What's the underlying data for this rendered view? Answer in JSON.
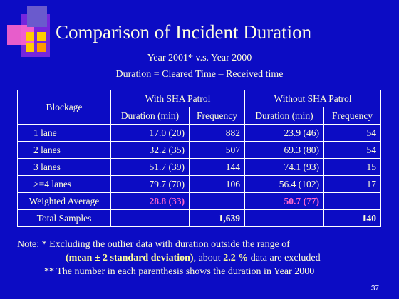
{
  "title": "Comparison of Incident Duration",
  "subtitle": [
    "Year 2001* v.s. Year 2000",
    "Duration = Cleared Time – Received time"
  ],
  "table": {
    "row_header": "Blockage",
    "group_headers": [
      "With SHA Patrol",
      "Without SHA Patrol"
    ],
    "column_headers": [
      "Duration (min)",
      "Frequency",
      "Duration (min)",
      "Frequency"
    ],
    "rows": [
      [
        "1 lane",
        "17.0 (20)",
        "882",
        "23.9 (46)",
        "54"
      ],
      [
        "2 lanes",
        "32.2 (35)",
        "507",
        "69.3 (80)",
        "54"
      ],
      [
        "3 lanes",
        "51.7 (39)",
        "144",
        "74.1 (93)",
        "15"
      ],
      [
        ">=4 lanes",
        "79.7 (70)",
        "106",
        "56.4 (102)",
        "17"
      ],
      [
        "Weighted Average",
        "28.8 (33)",
        null,
        "50.7 (77)",
        null
      ],
      [
        "Total Samples",
        null,
        "1,639",
        null,
        "140"
      ]
    ]
  },
  "note": {
    "line1": "Note: * Excluding the outlier data with duration outside the range of",
    "line2": [
      "(mean ± 2 standard deviation)",
      ", about ",
      "2.2 %",
      " data are excluded"
    ],
    "line3": "** The number in each parenthesis shows the duration in Year 2000"
  },
  "page_number": "37"
}
